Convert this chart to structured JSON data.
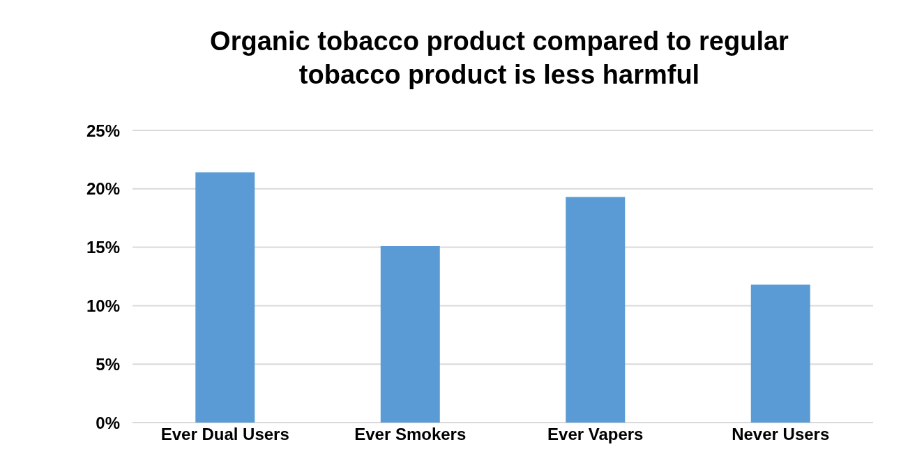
{
  "chart_data": {
    "type": "bar",
    "title": "Organic tobacco product compared to regular tobacco product is less harmful",
    "categories": [
      "Ever Dual Users",
      "Ever Smokers",
      "Ever Vapers",
      "Never Users"
    ],
    "values": [
      21.4,
      15.1,
      19.3,
      11.8
    ],
    "color": "#5b9bd5",
    "ylim": [
      0,
      25
    ],
    "yticks": [
      {
        "value": 0,
        "label": "0%"
      },
      {
        "value": 5,
        "label": "5%"
      },
      {
        "value": 10,
        "label": "10%"
      },
      {
        "value": 15,
        "label": "15%"
      },
      {
        "value": 20,
        "label": "20%"
      },
      {
        "value": 25,
        "label": "25%"
      }
    ],
    "grid": "y"
  }
}
